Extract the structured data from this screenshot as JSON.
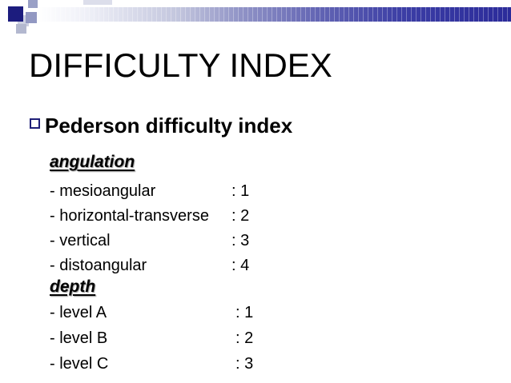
{
  "slide": {
    "title": "DIFFICULTY INDEX",
    "bullet_item": "Pederson difficulty index",
    "sections": [
      {
        "heading": "angulation",
        "items": [
          {
            "label": "- mesioangular",
            "value": ": 1"
          },
          {
            "label": "- horizontal-transverse",
            "value": ": 2"
          },
          {
            "label": "- vertical",
            "value": ": 3"
          },
          {
            "label": "- distoangular",
            "value": ": 4"
          }
        ]
      },
      {
        "heading": "depth",
        "items": [
          {
            "label": "- level A",
            "value": ": 1"
          },
          {
            "label": "- level B",
            "value": ": 2"
          },
          {
            "label": "- level C",
            "value": ": 3"
          }
        ]
      }
    ]
  },
  "decor": {
    "accent_navy": "#1c1c7e",
    "bar_end_color": "#2b2b9a",
    "bar_start_color": "#ffffff",
    "bullet_border_color": "#1f1f78"
  }
}
